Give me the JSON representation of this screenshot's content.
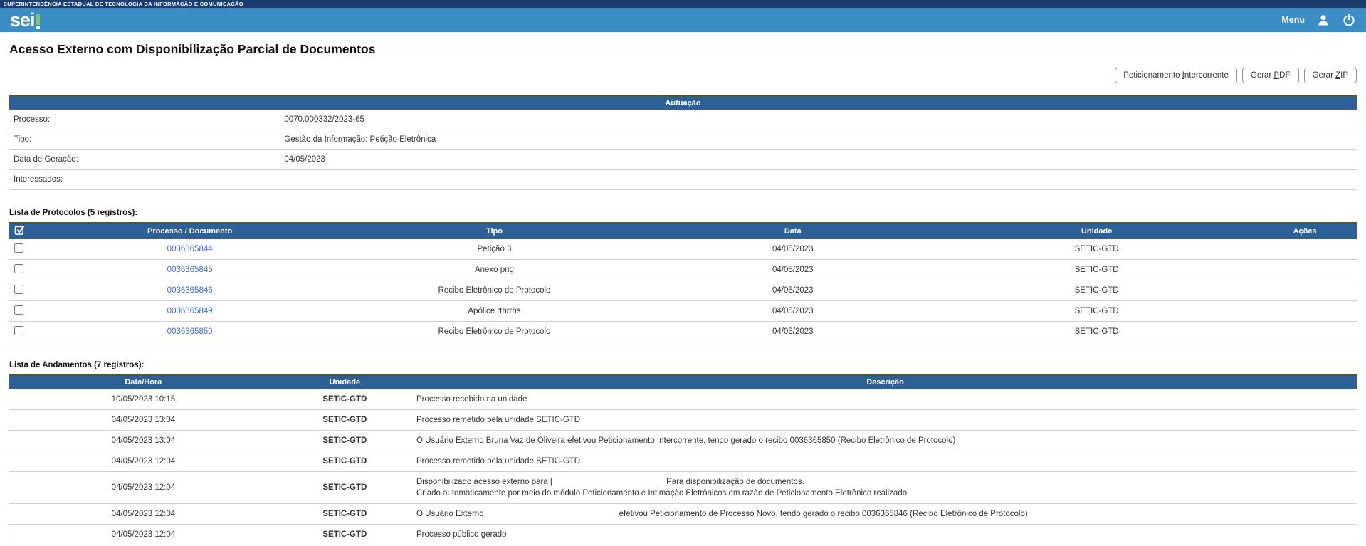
{
  "colors": {
    "topstrip_bg": "#1c3c6e",
    "appbar_bg": "#3b8dc6",
    "table_header_bg": "#2d6096",
    "link_blue": "#4169d6",
    "logo_green": "#8dc63f"
  },
  "topstrip": {
    "org_name": "SUPERINTENDÊNCIA ESTADUAL DE TECNOLOGIA DA INFORMAÇÃO E COMUNICAÇÃO"
  },
  "header": {
    "logo_text": "sei",
    "menu_label": "Menu"
  },
  "page": {
    "title": "Acesso Externo com Disponibilização Parcial de Documentos"
  },
  "toolbar": {
    "buttons": [
      {
        "before": "Peticionamento ",
        "key": "I",
        "after": "ntercorrente"
      },
      {
        "before": "Gerar ",
        "key": "P",
        "after": "DF"
      },
      {
        "before": "Gerar ",
        "key": "Z",
        "after": "IP"
      }
    ]
  },
  "autuacao": {
    "caption": "Autuação",
    "fields": [
      {
        "label": "Processo:",
        "value": "0070.000332/2023-65"
      },
      {
        "label": "Tipo:",
        "value": "Gestão da Informação: Petição Eletrônica"
      },
      {
        "label": "Data de Geração:",
        "value": "04/05/2023"
      },
      {
        "label": "Interessados:",
        "value": ""
      }
    ]
  },
  "protocolos": {
    "title": "Lista de Protocolos (5 registros):",
    "columns": [
      "Processo / Documento",
      "Tipo",
      "Data",
      "Unidade",
      "Ações"
    ],
    "rows": [
      {
        "doc": "0036365844",
        "tipo": "Petição 3",
        "data": "04/05/2023",
        "unidade": "SETIC-GTD",
        "acoes": ""
      },
      {
        "doc": "0036365845",
        "tipo": "Anexo png",
        "data": "04/05/2023",
        "unidade": "SETIC-GTD",
        "acoes": ""
      },
      {
        "doc": "0036365846",
        "tipo": "Recibo Eletrônico de Protocolo",
        "data": "04/05/2023",
        "unidade": "SETIC-GTD",
        "acoes": ""
      },
      {
        "doc": "0036365849",
        "tipo": "Apólice rthrrhs",
        "data": "04/05/2023",
        "unidade": "SETIC-GTD",
        "acoes": ""
      },
      {
        "doc": "0036365850",
        "tipo": "Recibo Eletrônico de Protocolo",
        "data": "04/05/2023",
        "unidade": "SETIC-GTD",
        "acoes": ""
      }
    ]
  },
  "andamentos": {
    "title": "Lista de Andamentos (7 registros):",
    "columns": [
      "Data/Hora",
      "Unidade",
      "Descrição"
    ],
    "rows": [
      {
        "datahora": "10/05/2023 10:15",
        "unidade": "SETIC-GTD",
        "descricao": [
          [
            {
              "t": "Processo recebido na unidade"
            }
          ]
        ]
      },
      {
        "datahora": "04/05/2023 13:04",
        "unidade": "SETIC-GTD",
        "descricao": [
          [
            {
              "t": "Processo remetido pela unidade SETIC-GTD"
            }
          ]
        ]
      },
      {
        "datahora": "04/05/2023 13:04",
        "unidade": "SETIC-GTD",
        "descricao": [
          [
            {
              "t": "O Usuário Externo Bruna Vaz de Oliveira efetivou Peticionamento Intercorrente, tendo gerado o recibo 0036365850 (Recibo Eletrônico de Protocolo)"
            }
          ]
        ]
      },
      {
        "datahora": "04/05/2023 12:04",
        "unidade": "SETIC-GTD",
        "descricao": [
          [
            {
              "t": "Processo remetido pela unidade SETIC-GTD"
            }
          ]
        ]
      },
      {
        "datahora": "04/05/2023 12:04",
        "unidade": "SETIC-GTD",
        "descricao": [
          [
            {
              "t": "Disponibilizado acesso externo para ["
            },
            {
              "gap": 160
            },
            {
              "t": "Para disponibilização de documentos."
            }
          ],
          [
            {
              "t": "Criado automaticamente por meio do módulo Peticionamento e Intimação Eletrônicos em razão de Peticionamento Eletrônico realizado."
            }
          ]
        ]
      },
      {
        "datahora": "04/05/2023 12:04",
        "unidade": "SETIC-GTD",
        "descricao": [
          [
            {
              "t": "O Usuário Externo"
            },
            {
              "gap": 190
            },
            {
              "t": "efetivou Peticionamento de Processo Novo, tendo gerado o recibo 0036365846 (Recibo Eletrônico de Protocolo)"
            }
          ]
        ]
      },
      {
        "datahora": "04/05/2023 12:04",
        "unidade": "SETIC-GTD",
        "descricao": [
          [
            {
              "t": "Processo público gerado"
            }
          ]
        ]
      }
    ]
  }
}
